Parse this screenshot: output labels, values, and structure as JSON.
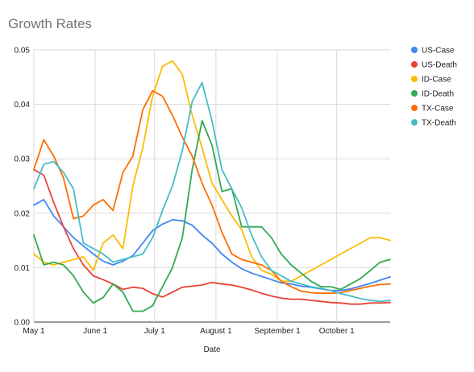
{
  "chart_data": {
    "type": "line",
    "title": "Growth Rates",
    "xlabel": "Date",
    "ylabel": "",
    "x_axis": {
      "type": "date",
      "range": [
        "2020-05-01",
        "2020-10-28"
      ],
      "ticks": [
        {
          "date": "2020-05-01",
          "label": "May 1"
        },
        {
          "date": "2020-06-01",
          "label": "June 1"
        },
        {
          "date": "2020-07-01",
          "label": "July 1"
        },
        {
          "date": "2020-08-01",
          "label": "August 1"
        },
        {
          "date": "2020-09-01",
          "label": "September 1"
        },
        {
          "date": "2020-10-01",
          "label": "October 1"
        }
      ]
    },
    "ylim": [
      0,
      0.05
    ],
    "y_ticks": [
      "0.00",
      "0.01",
      "0.02",
      "0.03",
      "0.04",
      "0.05"
    ],
    "grid": true,
    "legend_position": "right",
    "x": [
      "2020-05-01",
      "2020-05-06",
      "2020-05-11",
      "2020-05-16",
      "2020-05-21",
      "2020-05-26",
      "2020-05-31",
      "2020-06-05",
      "2020-06-10",
      "2020-06-15",
      "2020-06-20",
      "2020-06-25",
      "2020-06-30",
      "2020-07-05",
      "2020-07-10",
      "2020-07-15",
      "2020-07-20",
      "2020-07-25",
      "2020-07-30",
      "2020-08-04",
      "2020-08-09",
      "2020-08-14",
      "2020-08-19",
      "2020-08-24",
      "2020-08-29",
      "2020-09-03",
      "2020-09-08",
      "2020-09-13",
      "2020-09-18",
      "2020-09-23",
      "2020-09-28",
      "2020-10-03",
      "2020-10-08",
      "2020-10-13",
      "2020-10-18",
      "2020-10-23",
      "2020-10-28"
    ],
    "series": [
      {
        "name": "US-Case",
        "color": "#4285f4",
        "values": [
          0.0215,
          0.0225,
          0.0195,
          0.0175,
          0.0155,
          0.014,
          0.0125,
          0.0112,
          0.0105,
          0.0112,
          0.0122,
          0.0145,
          0.0168,
          0.018,
          0.0188,
          0.0186,
          0.0178,
          0.016,
          0.0145,
          0.0125,
          0.011,
          0.0098,
          0.009,
          0.0084,
          0.0078,
          0.0072,
          0.007,
          0.0066,
          0.0064,
          0.0061,
          0.0058,
          0.0058,
          0.0061,
          0.0066,
          0.0071,
          0.0077,
          0.0083
        ]
      },
      {
        "name": "US-Death",
        "color": "#ea4335",
        "values": [
          0.028,
          0.027,
          0.022,
          0.0175,
          0.0135,
          0.0105,
          0.0085,
          0.0078,
          0.007,
          0.006,
          0.0064,
          0.0062,
          0.0052,
          0.0046,
          0.0055,
          0.0064,
          0.0066,
          0.0068,
          0.0073,
          0.007,
          0.0068,
          0.0064,
          0.0059,
          0.0053,
          0.0048,
          0.0044,
          0.0042,
          0.0042,
          0.004,
          0.0038,
          0.0036,
          0.0035,
          0.0033,
          0.0033,
          0.0035,
          0.0035,
          0.0036
        ]
      },
      {
        "name": "ID-Case",
        "color": "#fbbc04",
        "values": [
          0.0125,
          0.011,
          0.0105,
          0.011,
          0.0115,
          0.012,
          0.0095,
          0.0145,
          0.016,
          0.0135,
          0.025,
          0.032,
          0.0415,
          0.047,
          0.048,
          0.0455,
          0.038,
          0.032,
          0.0255,
          0.0225,
          0.0195,
          0.017,
          0.012,
          0.0095,
          0.0088,
          0.0075,
          0.0075,
          0.0085,
          0.0095,
          0.0105,
          0.0115,
          0.0125,
          0.0135,
          0.0145,
          0.0155,
          0.0155,
          0.015
        ]
      },
      {
        "name": "ID-Death",
        "color": "#34a853",
        "values": [
          0.016,
          0.0105,
          0.011,
          0.0105,
          0.0085,
          0.0055,
          0.0035,
          0.0045,
          0.007,
          0.0055,
          0.002,
          0.002,
          0.003,
          0.0065,
          0.01,
          0.0155,
          0.028,
          0.037,
          0.0325,
          0.024,
          0.0245,
          0.0175,
          0.0175,
          0.0175,
          0.0155,
          0.0125,
          0.0105,
          0.009,
          0.0075,
          0.0065,
          0.0065,
          0.006,
          0.007,
          0.008,
          0.0095,
          0.011,
          0.0115
        ]
      },
      {
        "name": "TX-Case",
        "color": "#ff6d01",
        "values": [
          0.028,
          0.0335,
          0.0305,
          0.0265,
          0.019,
          0.0195,
          0.0215,
          0.0225,
          0.0205,
          0.0275,
          0.0305,
          0.039,
          0.0425,
          0.0415,
          0.038,
          0.034,
          0.0305,
          0.0255,
          0.0215,
          0.0165,
          0.0125,
          0.0115,
          0.011,
          0.0105,
          0.0095,
          0.0075,
          0.0065,
          0.0057,
          0.0054,
          0.0053,
          0.0053,
          0.0054,
          0.0058,
          0.0062,
          0.0066,
          0.0069,
          0.007
        ]
      },
      {
        "name": "TX-Death",
        "color": "#46bdc6",
        "values": [
          0.0245,
          0.029,
          0.0295,
          0.0275,
          0.0245,
          0.0145,
          0.0135,
          0.0125,
          0.011,
          0.0115,
          0.012,
          0.0125,
          0.0155,
          0.0205,
          0.025,
          0.0315,
          0.0405,
          0.044,
          0.037,
          0.028,
          0.0245,
          0.021,
          0.016,
          0.012,
          0.0095,
          0.0085,
          0.0075,
          0.007,
          0.0065,
          0.0062,
          0.0058,
          0.0052,
          0.0048,
          0.0043,
          0.004,
          0.0038,
          0.004
        ]
      }
    ]
  }
}
